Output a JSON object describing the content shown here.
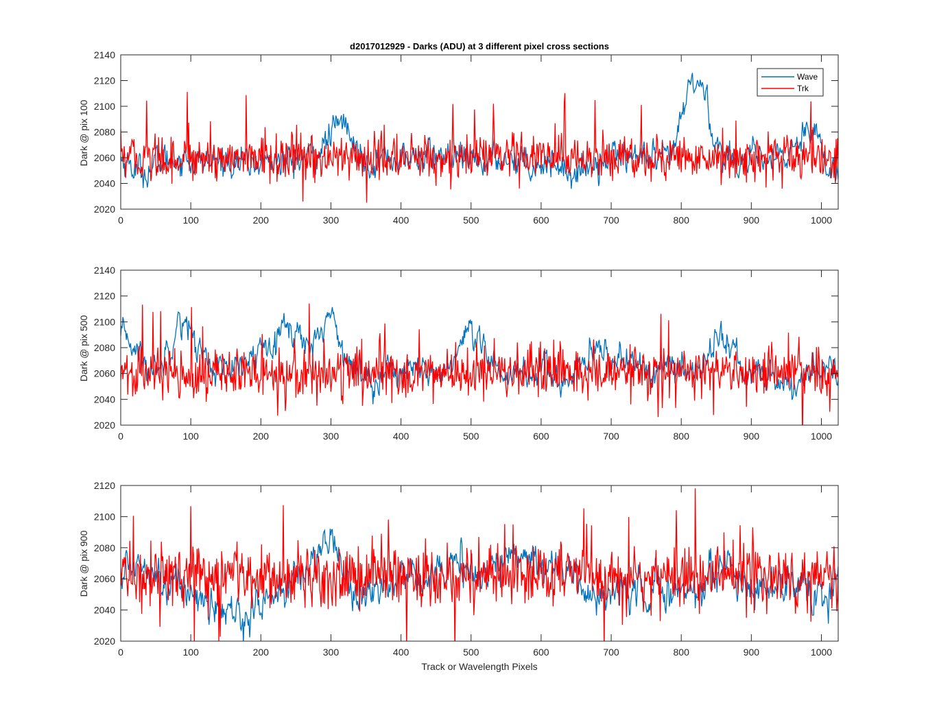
{
  "figure": {
    "title": "d2017012929 - Darks (ADU) at 3 different pixel cross sections",
    "xlabel": "Track or Wavelength Pixels"
  },
  "legend": {
    "position": "top-right",
    "entries": [
      "Wave",
      "Trk"
    ]
  },
  "chart_data": [
    {
      "type": "line",
      "ylabel": "Dark @ pix 100",
      "xlim": [
        0,
        1024
      ],
      "ylim": [
        2020,
        2140
      ],
      "xticks": [
        0,
        100,
        200,
        300,
        400,
        500,
        600,
        700,
        800,
        900,
        1000
      ],
      "yticks": [
        2020,
        2040,
        2060,
        2080,
        2100,
        2120,
        2140
      ],
      "series": [
        {
          "name": "Wave",
          "color": "#0072BD",
          "x": [
            0,
            30,
            60,
            90,
            120,
            150,
            180,
            210,
            240,
            270,
            295,
            300,
            310,
            320,
            330,
            350,
            380,
            410,
            440,
            470,
            500,
            530,
            560,
            590,
            620,
            650,
            680,
            710,
            740,
            770,
            790,
            800,
            810,
            818,
            825,
            835,
            845,
            860,
            890,
            920,
            950,
            970,
            980,
            990,
            1000,
            1010,
            1024
          ],
          "values": [
            2060,
            2048,
            2058,
            2060,
            2056,
            2058,
            2055,
            2058,
            2057,
            2060,
            2072,
            2080,
            2084,
            2090,
            2070,
            2058,
            2060,
            2058,
            2062,
            2060,
            2056,
            2058,
            2060,
            2055,
            2057,
            2046,
            2058,
            2063,
            2060,
            2056,
            2066,
            2088,
            2112,
            2122,
            2116,
            2110,
            2078,
            2060,
            2058,
            2057,
            2060,
            2076,
            2086,
            2088,
            2068,
            2045,
            2050
          ]
        },
        {
          "name": "Trk",
          "color": "#FF0000",
          "x": [
            0,
            1024
          ],
          "values": [
            2060,
            2060
          ],
          "noise": 11,
          "spikes": 24
        }
      ]
    },
    {
      "type": "line",
      "ylabel": "Dark @ pix 500",
      "xlim": [
        0,
        1024
      ],
      "ylim": [
        2020,
        2140
      ],
      "xticks": [
        0,
        100,
        200,
        300,
        400,
        500,
        600,
        700,
        800,
        900,
        1000
      ],
      "yticks": [
        2020,
        2040,
        2060,
        2080,
        2100,
        2120,
        2140
      ],
      "series": [
        {
          "name": "Wave",
          "color": "#0072BD",
          "x": [
            0,
            10,
            20,
            40,
            60,
            80,
            90,
            110,
            130,
            160,
            190,
            210,
            230,
            250,
            270,
            290,
            300,
            310,
            330,
            360,
            390,
            420,
            450,
            480,
            495,
            510,
            540,
            570,
            600,
            630,
            660,
            690,
            720,
            750,
            780,
            810,
            830,
            850,
            870,
            890,
            920,
            960,
            990,
            1024
          ],
          "values": [
            2085,
            2090,
            2080,
            2062,
            2070,
            2098,
            2104,
            2080,
            2066,
            2060,
            2072,
            2088,
            2096,
            2092,
            2080,
            2100,
            2104,
            2094,
            2062,
            2057,
            2064,
            2060,
            2058,
            2072,
            2090,
            2080,
            2062,
            2060,
            2062,
            2052,
            2068,
            2076,
            2072,
            2062,
            2064,
            2060,
            2070,
            2088,
            2082,
            2060,
            2058,
            2050,
            2064,
            2062
          ]
        },
        {
          "name": "Trk",
          "color": "#FF0000",
          "x": [
            0,
            1024
          ],
          "values": [
            2060,
            2060
          ],
          "noise": 12,
          "spikes": 26
        }
      ]
    },
    {
      "type": "line",
      "ylabel": "Dark @ pix 900",
      "xlim": [
        0,
        1024
      ],
      "ylim": [
        2020,
        2120
      ],
      "xticks": [
        0,
        100,
        200,
        300,
        400,
        500,
        600,
        700,
        800,
        900,
        1000
      ],
      "yticks": [
        2020,
        2040,
        2060,
        2080,
        2100,
        2120
      ],
      "series": [
        {
          "name": "Wave",
          "color": "#0072BD",
          "x": [
            0,
            20,
            40,
            60,
            90,
            110,
            130,
            150,
            170,
            190,
            210,
            240,
            270,
            290,
            300,
            310,
            330,
            360,
            390,
            420,
            450,
            480,
            510,
            540,
            570,
            600,
            630,
            650,
            670,
            700,
            730,
            760,
            790,
            820,
            850,
            870,
            900,
            930,
            960,
            990,
            1010,
            1024
          ],
          "values": [
            2062,
            2070,
            2072,
            2058,
            2054,
            2050,
            2042,
            2038,
            2036,
            2040,
            2048,
            2054,
            2070,
            2082,
            2086,
            2078,
            2052,
            2050,
            2060,
            2064,
            2066,
            2068,
            2064,
            2070,
            2078,
            2072,
            2066,
            2060,
            2048,
            2052,
            2050,
            2056,
            2050,
            2054,
            2064,
            2070,
            2052,
            2058,
            2054,
            2046,
            2050,
            2056
          ]
        },
        {
          "name": "Trk",
          "color": "#FF0000",
          "x": [
            0,
            1024
          ],
          "values": [
            2062,
            2062
          ],
          "noise": 12,
          "spikes": 28
        }
      ]
    }
  ]
}
